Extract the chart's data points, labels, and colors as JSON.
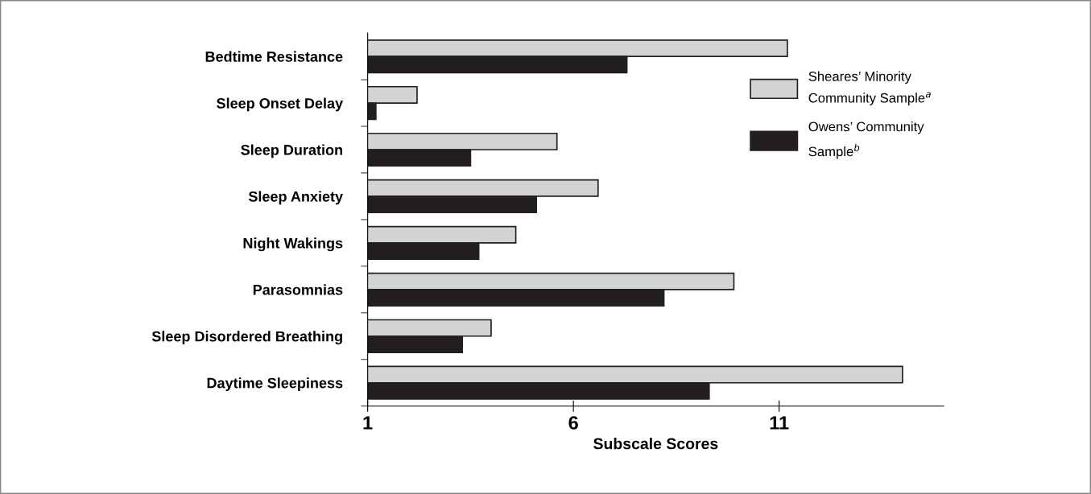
{
  "chart_data": {
    "type": "bar",
    "orientation": "horizontal",
    "xlabel": "Subscale Scores",
    "categories": [
      "Bedtime Resistance",
      "Sleep Onset Delay",
      "Sleep Duration",
      "Sleep Anxiety",
      "Night Wakings",
      "Parasomnias",
      "Sleep Disordered Breathing",
      "Daytime Sleepiness"
    ],
    "series": [
      {
        "name": "Sheares’ Minority\nCommunity Sample$^{a}$",
        "color": "#d1d3d4",
        "values": [
          11.2,
          2.2,
          5.6,
          6.6,
          4.6,
          9.9,
          4.0,
          14.0
        ]
      },
      {
        "name": "Owens’ Community\nSample$^{b}$",
        "color": "#231f20",
        "values": [
          7.3,
          1.2,
          3.5,
          5.1,
          3.7,
          8.2,
          3.3,
          9.3
        ]
      }
    ],
    "xlim": [
      1,
      15
    ],
    "xticks": [
      1,
      6,
      11
    ],
    "grid": false,
    "legend": "top right"
  }
}
